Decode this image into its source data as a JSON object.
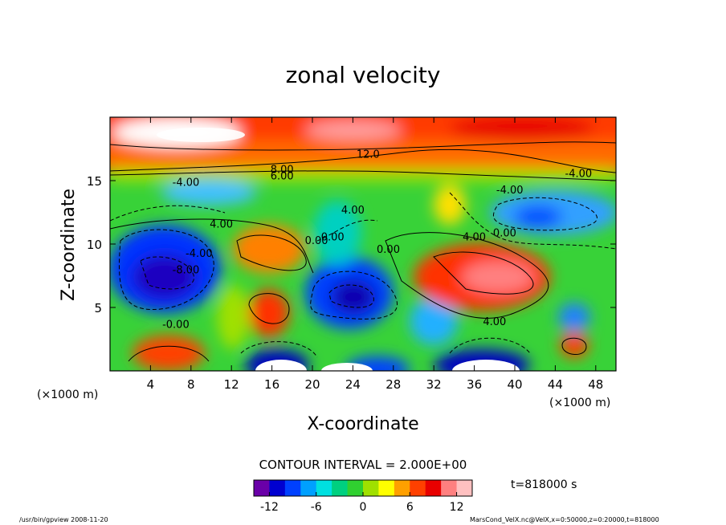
{
  "chart_data": {
    "type": "heatmap",
    "title": "zonal velocity",
    "xlabel": "X-coordinate",
    "ylabel": "Z-coordinate",
    "x_unit_label": "(×1000 m)",
    "z_unit_label": "(×1000 m)",
    "xlim": [
      0,
      50
    ],
    "ylim": [
      0,
      20
    ],
    "x_ticks": [
      4,
      8,
      12,
      16,
      20,
      24,
      28,
      32,
      36,
      40,
      44,
      48
    ],
    "y_ticks": [
      5,
      10,
      15
    ],
    "colorbar": {
      "ticks": [
        -12,
        -6,
        0,
        6,
        12
      ],
      "range": [
        -14,
        14
      ],
      "colors": [
        "#6a00a8",
        "#0000d0",
        "#0040ff",
        "#00a0ff",
        "#00e0e0",
        "#00d080",
        "#30d030",
        "#a0e000",
        "#ffff00",
        "#ffa000",
        "#ff4000",
        "#e80000",
        "#ff8080",
        "#ffc0c0"
      ]
    },
    "contour_interval": "CONTOUR INTERVAL = 2.000E+00",
    "time_label": "t=818000 s",
    "contour_labels": [
      {
        "text": "12.0",
        "x": 25.5,
        "y": 16.8
      },
      {
        "text": "8.00",
        "x": 17.0,
        "y": 15.6
      },
      {
        "text": "6.00",
        "x": 17.0,
        "y": 15.1
      },
      {
        "text": "-4.00",
        "x": 7.5,
        "y": 14.6
      },
      {
        "text": "-4.00",
        "x": 39.5,
        "y": 14.0
      },
      {
        "text": "-4.00",
        "x": 46.3,
        "y": 15.3
      },
      {
        "text": "4.00",
        "x": 24.0,
        "y": 12.4
      },
      {
        "text": "4.00",
        "x": 11.0,
        "y": 11.3
      },
      {
        "text": "0.00",
        "x": 20.4,
        "y": 10.0
      },
      {
        "text": "0.00",
        "x": 22.0,
        "y": 10.3
      },
      {
        "text": "0.00",
        "x": 27.5,
        "y": 9.3
      },
      {
        "text": "0.00",
        "x": 39.0,
        "y": 10.6
      },
      {
        "text": "4.00",
        "x": 36.0,
        "y": 10.3
      },
      {
        "text": "-4.00",
        "x": 8.8,
        "y": 9.0
      },
      {
        "text": "-8.00",
        "x": 7.5,
        "y": 7.7
      },
      {
        "text": "-0.00",
        "x": 6.5,
        "y": 3.4
      },
      {
        "text": "4.00",
        "x": 38.0,
        "y": 3.6
      }
    ]
  },
  "footer": {
    "left": "/usr/bin/gpview   2008-11-20",
    "right": "MarsCond_VelX.nc@VelX,x=0:50000,z=0:20000,t=818000"
  }
}
